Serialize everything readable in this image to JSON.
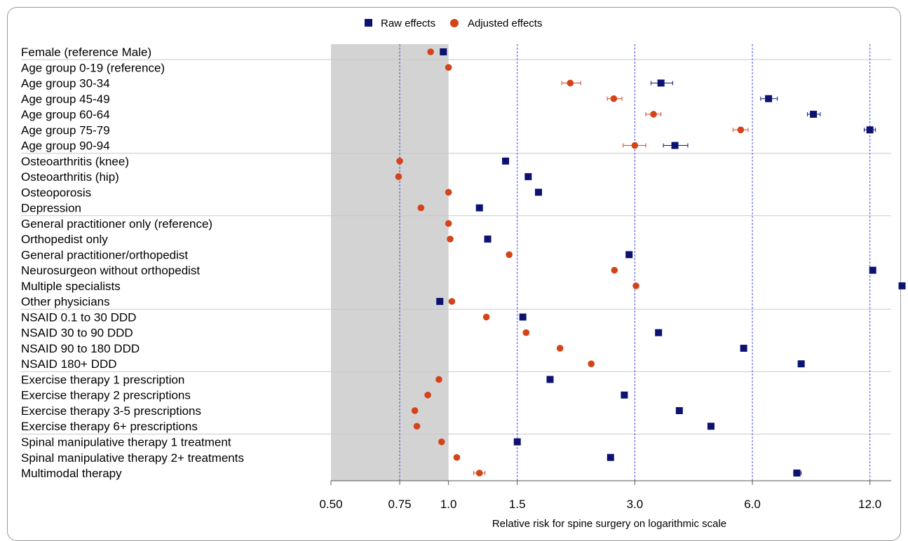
{
  "chart_data": {
    "type": "scatter",
    "x_scale": "log",
    "xlim": [
      0.5,
      13.6
    ],
    "xticks": [
      0.5,
      0.75,
      1.0,
      1.5,
      3.0,
      6.0,
      12.0
    ],
    "xtick_labels": [
      "0.50",
      "0.75",
      "1.0",
      "1.5",
      "3.0",
      "6.0",
      "12.0"
    ],
    "reference_lines": [
      0.75,
      1.5,
      3.0,
      6.0,
      12.0
    ],
    "shaded_region": [
      0.5,
      1.0
    ],
    "xlabel": "Relative risk for spine surgery on logarithmic scale",
    "legend_position": "top-center",
    "colors": {
      "raw": "#0d1272",
      "adjusted": "#d4431a",
      "shade": "#d3d3d3",
      "refline": "#4a4ae8"
    },
    "groups": [
      [
        0
      ],
      [
        1,
        2,
        3,
        4,
        5,
        6
      ],
      [
        7,
        8,
        9,
        10
      ],
      [
        11,
        12,
        13,
        14,
        15,
        16
      ],
      [
        17,
        18,
        19,
        20
      ],
      [
        21,
        22,
        23,
        24
      ],
      [
        25,
        26,
        27
      ]
    ],
    "categories": [
      "Female (reference Male)",
      "Age group 0-19 (reference)",
      "Age group 30-34",
      "Age group 45-49",
      "Age group 60-64",
      "Age group 75-79",
      "Age group 90-94",
      "Osteoarthritis (knee)",
      "Osteoarthritis (hip)",
      "Osteoporosis",
      "Depression",
      "General practitioner only (reference)",
      "Orthopedist only",
      "General practitioner/orthopedist",
      "Neurosurgeon without orthopedist",
      "Multiple specialists",
      "Other physicians",
      "NSAID 0.1 to 30 DDD",
      "NSAID 30 to 90 DDD",
      "NSAID 90 to 180 DDD",
      "NSAID 180+ DDD",
      "Exercise therapy 1 prescription",
      "Exercise therapy 2 prescriptions",
      "Exercise therapy 3-5 prescriptions",
      "Exercise therapy 6+ prescriptions",
      "Spinal manipulative therapy 1 treatment",
      "Spinal manipulative therapy 2+ treatments",
      "Multimodal therapy"
    ],
    "series": [
      {
        "name": "Raw effects",
        "marker": "square",
        "values": [
          0.97,
          null,
          3.5,
          6.6,
          8.6,
          12.0,
          3.8,
          1.4,
          1.6,
          1.7,
          1.2,
          null,
          1.26,
          2.9,
          12.2,
          14.5,
          0.95,
          1.55,
          3.45,
          5.7,
          8.0,
          1.82,
          2.82,
          3.9,
          4.7,
          1.5,
          2.6,
          7.8
        ],
        "ci_lower": [
          null,
          null,
          3.3,
          6.3,
          8.3,
          11.6,
          3.55,
          null,
          null,
          null,
          null,
          null,
          null,
          null,
          null,
          null,
          null,
          null,
          null,
          null,
          null,
          null,
          null,
          null,
          null,
          null,
          null,
          7.65
        ],
        "ci_upper": [
          null,
          null,
          3.75,
          6.95,
          8.95,
          12.4,
          4.1,
          null,
          null,
          null,
          null,
          null,
          null,
          null,
          null,
          null,
          null,
          null,
          null,
          null,
          null,
          null,
          null,
          null,
          null,
          null,
          null,
          8.0
        ]
      },
      {
        "name": "Adjusted effects",
        "marker": "circle",
        "values": [
          0.9,
          1.0,
          2.05,
          2.65,
          3.35,
          5.6,
          3.0,
          0.75,
          0.745,
          1.0,
          0.85,
          1.0,
          1.01,
          1.43,
          2.66,
          3.02,
          1.02,
          1.25,
          1.58,
          1.93,
          2.32,
          0.945,
          0.885,
          0.82,
          0.83,
          0.96,
          1.05,
          1.2
        ],
        "ci_lower": [
          null,
          null,
          1.95,
          2.55,
          3.2,
          5.35,
          2.8,
          null,
          null,
          null,
          null,
          null,
          null,
          null,
          null,
          null,
          null,
          null,
          null,
          null,
          null,
          null,
          null,
          null,
          null,
          null,
          null,
          1.16
        ],
        "ci_upper": [
          null,
          null,
          2.18,
          2.78,
          3.5,
          5.85,
          3.2,
          null,
          null,
          null,
          null,
          null,
          null,
          null,
          null,
          null,
          null,
          null,
          null,
          null,
          null,
          null,
          null,
          null,
          null,
          null,
          null,
          1.24
        ]
      }
    ]
  }
}
